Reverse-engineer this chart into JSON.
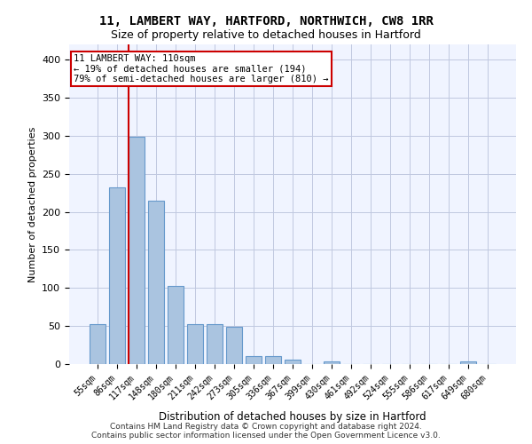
{
  "title1": "11, LAMBERT WAY, HARTFORD, NORTHWICH, CW8 1RR",
  "title2": "Size of property relative to detached houses in Hartford",
  "xlabel": "Distribution of detached houses by size in Hartford",
  "ylabel": "Number of detached properties",
  "categories": [
    "55sqm",
    "86sqm",
    "117sqm",
    "148sqm",
    "180sqm",
    "211sqm",
    "242sqm",
    "273sqm",
    "305sqm",
    "336sqm",
    "367sqm",
    "399sqm",
    "430sqm",
    "461sqm",
    "492sqm",
    "524sqm",
    "555sqm",
    "586sqm",
    "617sqm",
    "649sqm",
    "680sqm"
  ],
  "values": [
    53,
    232,
    299,
    215,
    103,
    52,
    52,
    49,
    10,
    10,
    6,
    0,
    4,
    0,
    0,
    0,
    0,
    0,
    0,
    3,
    0
  ],
  "bar_color": "#aac4e0",
  "bar_edge_color": "#6699cc",
  "vline_x": 2,
  "vline_color": "#cc0000",
  "annotation_title": "11 LAMBERT WAY: 110sqm",
  "annotation_line2": "← 19% of detached houses are smaller (194)",
  "annotation_line3": "79% of semi-detached houses are larger (810) →",
  "annotation_box_color": "#cc0000",
  "ylim": [
    0,
    420
  ],
  "yticks": [
    0,
    50,
    100,
    150,
    200,
    250,
    300,
    350,
    400
  ],
  "footer": "Contains HM Land Registry data © Crown copyright and database right 2024.\nContains public sector information licensed under the Open Government Licence v3.0.",
  "background_color": "#f0f4ff",
  "grid_color": "#c0c8e0"
}
